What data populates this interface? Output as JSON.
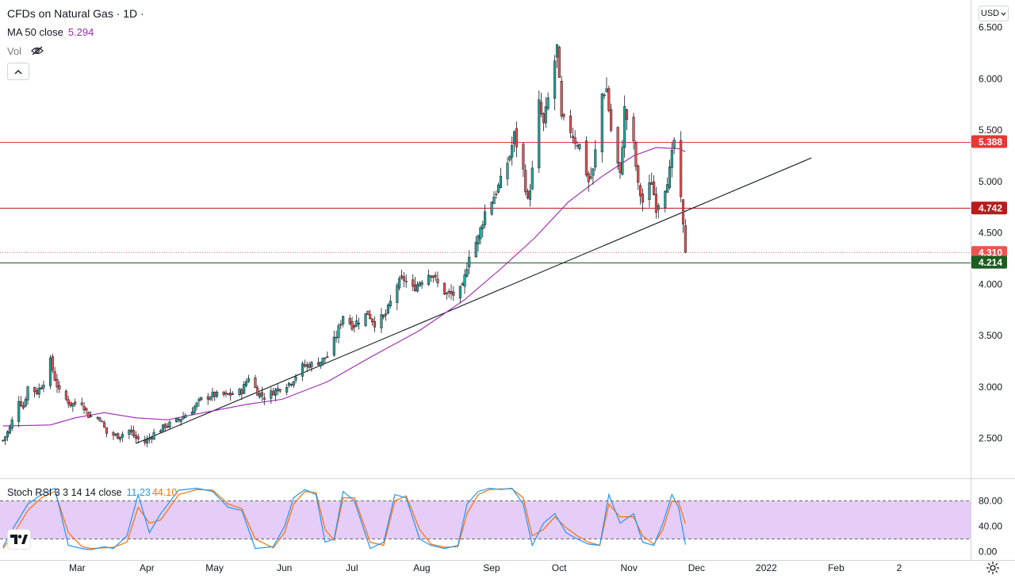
{
  "legend": {
    "title": "CFDs on Natural Gas · 1D ·",
    "ma_label": "MA 50 close",
    "ma_value": "5.294",
    "vol_label": "Vol",
    "stoch_label": "Stoch RSI 3 3 14 14 close",
    "stoch_k": "11.23",
    "stoch_d": "44.10"
  },
  "currency": "USD",
  "icons": {
    "visibility": "eye-crossed-icon",
    "collapse": "chevron-up-icon",
    "currency_dropdown": "chevron-down-icon",
    "logo": "tradingview-logo-icon",
    "settings": "gear-icon"
  },
  "colors": {
    "up": "#26a69a",
    "down": "#ef5350",
    "ma": "#9c27b0",
    "stoch_k": "#2196f3",
    "stoch_d": "#ff6d00",
    "stoch_band": "#e1c4f7",
    "resistance_line": "#e53935",
    "mid_line": "#b71c1c",
    "support_line": "#1b5e20",
    "last_price_label": "#ef5350",
    "support_label": "#1b5e20",
    "mid_label": "#b71c1c"
  },
  "chart_data": [
    {
      "type": "candlestick",
      "title": "CFDs on Natural Gas · 1D",
      "y_axis_ticks": [
        "6.500",
        "6.000",
        "5.500",
        "5.000",
        "4.500",
        "4.000",
        "3.500",
        "3.000",
        "2.500"
      ],
      "x_axis_ticks": [
        "Mar",
        "Apr",
        "May",
        "Jun",
        "Jul",
        "Aug",
        "Sep",
        "Oct",
        "Nov",
        "Dec",
        "2022",
        "Feb",
        "2"
      ],
      "ylim": [
        2.15,
        6.72
      ],
      "price_labels": [
        {
          "value": 5.388,
          "text": "5.388",
          "kind": "resistance_line"
        },
        {
          "value": 4.742,
          "text": "4.742",
          "kind": "mid_line"
        },
        {
          "value": 4.31,
          "text": "4.310",
          "kind": "last_price"
        },
        {
          "value": 4.214,
          "text": "4.214",
          "kind": "support_line"
        }
      ],
      "trendline": {
        "from": {
          "date": "2021-04-01",
          "price": 2.45
        },
        "to": {
          "date": "2022-01-26",
          "price": 5.23
        }
      },
      "close_path": [
        [
          "2021-02-01",
          2.48
        ],
        [
          "2021-02-04",
          2.6
        ],
        [
          "2021-02-08",
          2.88
        ],
        [
          "2021-02-10",
          2.8
        ],
        [
          "2021-02-12",
          3.0
        ],
        [
          "2021-02-16",
          2.95
        ],
        [
          "2021-02-19",
          3.05
        ],
        [
          "2021-02-22",
          3.25
        ],
        [
          "2021-02-24",
          3.08
        ],
        [
          "2021-02-26",
          2.95
        ],
        [
          "2021-03-03",
          2.83
        ],
        [
          "2021-03-08",
          2.85
        ],
        [
          "2021-03-11",
          2.72
        ],
        [
          "2021-03-16",
          2.7
        ],
        [
          "2021-03-19",
          2.55
        ],
        [
          "2021-03-24",
          2.52
        ],
        [
          "2021-03-29",
          2.58
        ],
        [
          "2021-04-01",
          2.5
        ],
        [
          "2021-04-05",
          2.46
        ],
        [
          "2021-04-09",
          2.55
        ],
        [
          "2021-04-14",
          2.62
        ],
        [
          "2021-04-20",
          2.68
        ],
        [
          "2021-04-26",
          2.78
        ],
        [
          "2021-04-30",
          2.88
        ],
        [
          "2021-05-05",
          2.92
        ],
        [
          "2021-05-12",
          2.92
        ],
        [
          "2021-05-18",
          2.96
        ],
        [
          "2021-05-21",
          3.1
        ],
        [
          "2021-05-25",
          2.95
        ],
        [
          "2021-05-28",
          2.9
        ],
        [
          "2021-06-03",
          2.98
        ],
        [
          "2021-06-09",
          3.05
        ],
        [
          "2021-06-14",
          3.2
        ],
        [
          "2021-06-18",
          3.22
        ],
        [
          "2021-06-22",
          3.25
        ],
        [
          "2021-06-25",
          3.3
        ],
        [
          "2021-06-29",
          3.5
        ],
        [
          "2021-07-02",
          3.7
        ],
        [
          "2021-07-06",
          3.6
        ],
        [
          "2021-07-09",
          3.65
        ],
        [
          "2021-07-13",
          3.72
        ],
        [
          "2021-07-16",
          3.62
        ],
        [
          "2021-07-21",
          3.7
        ],
        [
          "2021-07-26",
          4.0
        ],
        [
          "2021-07-29",
          4.05
        ],
        [
          "2021-08-02",
          3.95
        ],
        [
          "2021-08-06",
          4.05
        ],
        [
          "2021-08-10",
          4.12
        ],
        [
          "2021-08-13",
          4.0
        ],
        [
          "2021-08-17",
          3.9
        ],
        [
          "2021-08-20",
          3.9
        ],
        [
          "2021-08-24",
          3.95
        ],
        [
          "2021-08-27",
          4.3
        ],
        [
          "2021-08-31",
          4.45
        ],
        [
          "2021-09-03",
          4.7
        ],
        [
          "2021-09-08",
          4.9
        ],
        [
          "2021-09-10",
          5.0
        ],
        [
          "2021-09-14",
          5.25
        ],
        [
          "2021-09-16",
          5.45
        ],
        [
          "2021-09-20",
          5.1
        ],
        [
          "2021-09-22",
          4.8
        ],
        [
          "2021-09-24",
          5.1
        ],
        [
          "2021-09-27",
          5.75
        ],
        [
          "2021-09-29",
          5.55
        ],
        [
          "2021-10-01",
          5.8
        ],
        [
          "2021-10-05",
          6.3
        ],
        [
          "2021-10-07",
          5.6
        ],
        [
          "2021-10-11",
          5.5
        ],
        [
          "2021-10-13",
          5.4
        ],
        [
          "2021-10-15",
          5.35
        ],
        [
          "2021-10-19",
          5.0
        ],
        [
          "2021-10-21",
          5.1
        ],
        [
          "2021-10-25",
          5.85
        ],
        [
          "2021-10-27",
          5.9
        ],
        [
          "2021-10-29",
          5.5
        ],
        [
          "2021-11-02",
          5.05
        ],
        [
          "2021-11-04",
          5.7
        ],
        [
          "2021-11-08",
          5.35
        ],
        [
          "2021-11-10",
          4.95
        ],
        [
          "2021-11-12",
          4.8
        ],
        [
          "2021-11-16",
          5.0
        ],
        [
          "2021-11-18",
          4.75
        ],
        [
          "2021-11-22",
          4.95
        ],
        [
          "2021-11-24",
          5.1
        ],
        [
          "2021-11-26",
          5.4
        ],
        [
          "2021-11-29",
          4.8
        ],
        [
          "2021-11-30",
          4.55
        ],
        [
          "2021-12-01",
          4.31
        ]
      ],
      "ma50_path": [
        [
          "2021-02-01",
          2.62
        ],
        [
          "2021-02-22",
          2.63
        ],
        [
          "2021-03-05",
          2.7
        ],
        [
          "2021-03-18",
          2.75
        ],
        [
          "2021-04-01",
          2.7
        ],
        [
          "2021-04-15",
          2.68
        ],
        [
          "2021-05-01",
          2.75
        ],
        [
          "2021-05-20",
          2.83
        ],
        [
          "2021-06-05",
          2.88
        ],
        [
          "2021-06-25",
          3.05
        ],
        [
          "2021-07-15",
          3.3
        ],
        [
          "2021-08-05",
          3.55
        ],
        [
          "2021-08-25",
          3.85
        ],
        [
          "2021-09-10",
          4.15
        ],
        [
          "2021-09-25",
          4.45
        ],
        [
          "2021-10-10",
          4.8
        ],
        [
          "2021-10-25",
          5.05
        ],
        [
          "2021-11-08",
          5.25
        ],
        [
          "2021-11-18",
          5.33
        ],
        [
          "2021-11-28",
          5.32
        ],
        [
          "2021-12-01",
          5.29
        ]
      ],
      "last_close": 4.31,
      "ma50_last": 5.294
    },
    {
      "type": "line",
      "title": "Stoch RSI 3 3 14 14 close",
      "y_axis_ticks": [
        "80.00",
        "40.00",
        "0.00"
      ],
      "ylim": [
        -8,
        112
      ],
      "band": [
        20,
        80
      ],
      "series": [
        {
          "name": "K",
          "last": 11.23,
          "points": [
            [
              "2021-02-01",
              8
            ],
            [
              "2021-02-06",
              40
            ],
            [
              "2021-02-12",
              75
            ],
            [
              "2021-02-18",
              90
            ],
            [
              "2021-02-24",
              100
            ],
            [
              "2021-03-02",
              10
            ],
            [
              "2021-03-08",
              5
            ],
            [
              "2021-03-12",
              3
            ],
            [
              "2021-03-18",
              8
            ],
            [
              "2021-03-22",
              5
            ],
            [
              "2021-03-28",
              25
            ],
            [
              "2021-04-02",
              90
            ],
            [
              "2021-04-07",
              30
            ],
            [
              "2021-04-12",
              60
            ],
            [
              "2021-04-20",
              97
            ],
            [
              "2021-04-28",
              100
            ],
            [
              "2021-05-05",
              95
            ],
            [
              "2021-05-12",
              70
            ],
            [
              "2021-05-18",
              65
            ],
            [
              "2021-05-24",
              5
            ],
            [
              "2021-06-01",
              8
            ],
            [
              "2021-06-06",
              40
            ],
            [
              "2021-06-10",
              85
            ],
            [
              "2021-06-15",
              98
            ],
            [
              "2021-06-20",
              90
            ],
            [
              "2021-06-24",
              15
            ],
            [
              "2021-06-28",
              20
            ],
            [
              "2021-07-02",
              95
            ],
            [
              "2021-07-07",
              80
            ],
            [
              "2021-07-14",
              5
            ],
            [
              "2021-07-20",
              15
            ],
            [
              "2021-07-25",
              90
            ],
            [
              "2021-07-30",
              85
            ],
            [
              "2021-08-05",
              20
            ],
            [
              "2021-08-10",
              10
            ],
            [
              "2021-08-16",
              5
            ],
            [
              "2021-08-22",
              10
            ],
            [
              "2021-08-26",
              75
            ],
            [
              "2021-08-31",
              95
            ],
            [
              "2021-09-05",
              100
            ],
            [
              "2021-09-10",
              98
            ],
            [
              "2021-09-15",
              100
            ],
            [
              "2021-09-20",
              75
            ],
            [
              "2021-09-24",
              10
            ],
            [
              "2021-09-29",
              45
            ],
            [
              "2021-10-04",
              60
            ],
            [
              "2021-10-09",
              30
            ],
            [
              "2021-10-14",
              20
            ],
            [
              "2021-10-19",
              12
            ],
            [
              "2021-10-24",
              10
            ],
            [
              "2021-10-28",
              90
            ],
            [
              "2021-11-02",
              45
            ],
            [
              "2021-11-08",
              60
            ],
            [
              "2021-11-12",
              15
            ],
            [
              "2021-11-17",
              10
            ],
            [
              "2021-11-21",
              45
            ],
            [
              "2021-11-25",
              90
            ],
            [
              "2021-11-28",
              70
            ],
            [
              "2021-12-01",
              11.23
            ]
          ]
        },
        {
          "name": "D",
          "last": 44.1,
          "points": [
            [
              "2021-02-01",
              5
            ],
            [
              "2021-02-06",
              30
            ],
            [
              "2021-02-12",
              65
            ],
            [
              "2021-02-18",
              85
            ],
            [
              "2021-02-24",
              95
            ],
            [
              "2021-03-02",
              30
            ],
            [
              "2021-03-08",
              8
            ],
            [
              "2021-03-12",
              5
            ],
            [
              "2021-03-18",
              6
            ],
            [
              "2021-03-22",
              7
            ],
            [
              "2021-03-28",
              15
            ],
            [
              "2021-04-02",
              70
            ],
            [
              "2021-04-07",
              45
            ],
            [
              "2021-04-12",
              50
            ],
            [
              "2021-04-20",
              90
            ],
            [
              "2021-04-28",
              98
            ],
            [
              "2021-05-05",
              97
            ],
            [
              "2021-05-12",
              75
            ],
            [
              "2021-05-18",
              68
            ],
            [
              "2021-05-24",
              20
            ],
            [
              "2021-06-01",
              6
            ],
            [
              "2021-06-06",
              30
            ],
            [
              "2021-06-10",
              75
            ],
            [
              "2021-06-15",
              95
            ],
            [
              "2021-06-20",
              93
            ],
            [
              "2021-06-24",
              35
            ],
            [
              "2021-06-28",
              18
            ],
            [
              "2021-07-02",
              85
            ],
            [
              "2021-07-07",
              85
            ],
            [
              "2021-07-14",
              15
            ],
            [
              "2021-07-20",
              10
            ],
            [
              "2021-07-25",
              80
            ],
            [
              "2021-07-30",
              88
            ],
            [
              "2021-08-05",
              35
            ],
            [
              "2021-08-10",
              12
            ],
            [
              "2021-08-16",
              7
            ],
            [
              "2021-08-22",
              8
            ],
            [
              "2021-08-26",
              60
            ],
            [
              "2021-08-31",
              90
            ],
            [
              "2021-09-05",
              98
            ],
            [
              "2021-09-10",
              99
            ],
            [
              "2021-09-15",
              99
            ],
            [
              "2021-09-20",
              85
            ],
            [
              "2021-09-24",
              25
            ],
            [
              "2021-09-29",
              35
            ],
            [
              "2021-10-04",
              55
            ],
            [
              "2021-10-09",
              38
            ],
            [
              "2021-10-14",
              25
            ],
            [
              "2021-10-19",
              15
            ],
            [
              "2021-10-24",
              10
            ],
            [
              "2021-10-28",
              75
            ],
            [
              "2021-11-02",
              55
            ],
            [
              "2021-11-08",
              55
            ],
            [
              "2021-11-12",
              25
            ],
            [
              "2021-11-17",
              12
            ],
            [
              "2021-11-21",
              35
            ],
            [
              "2021-11-25",
              80
            ],
            [
              "2021-11-28",
              78
            ],
            [
              "2021-12-01",
              44.1
            ]
          ]
        }
      ]
    }
  ]
}
